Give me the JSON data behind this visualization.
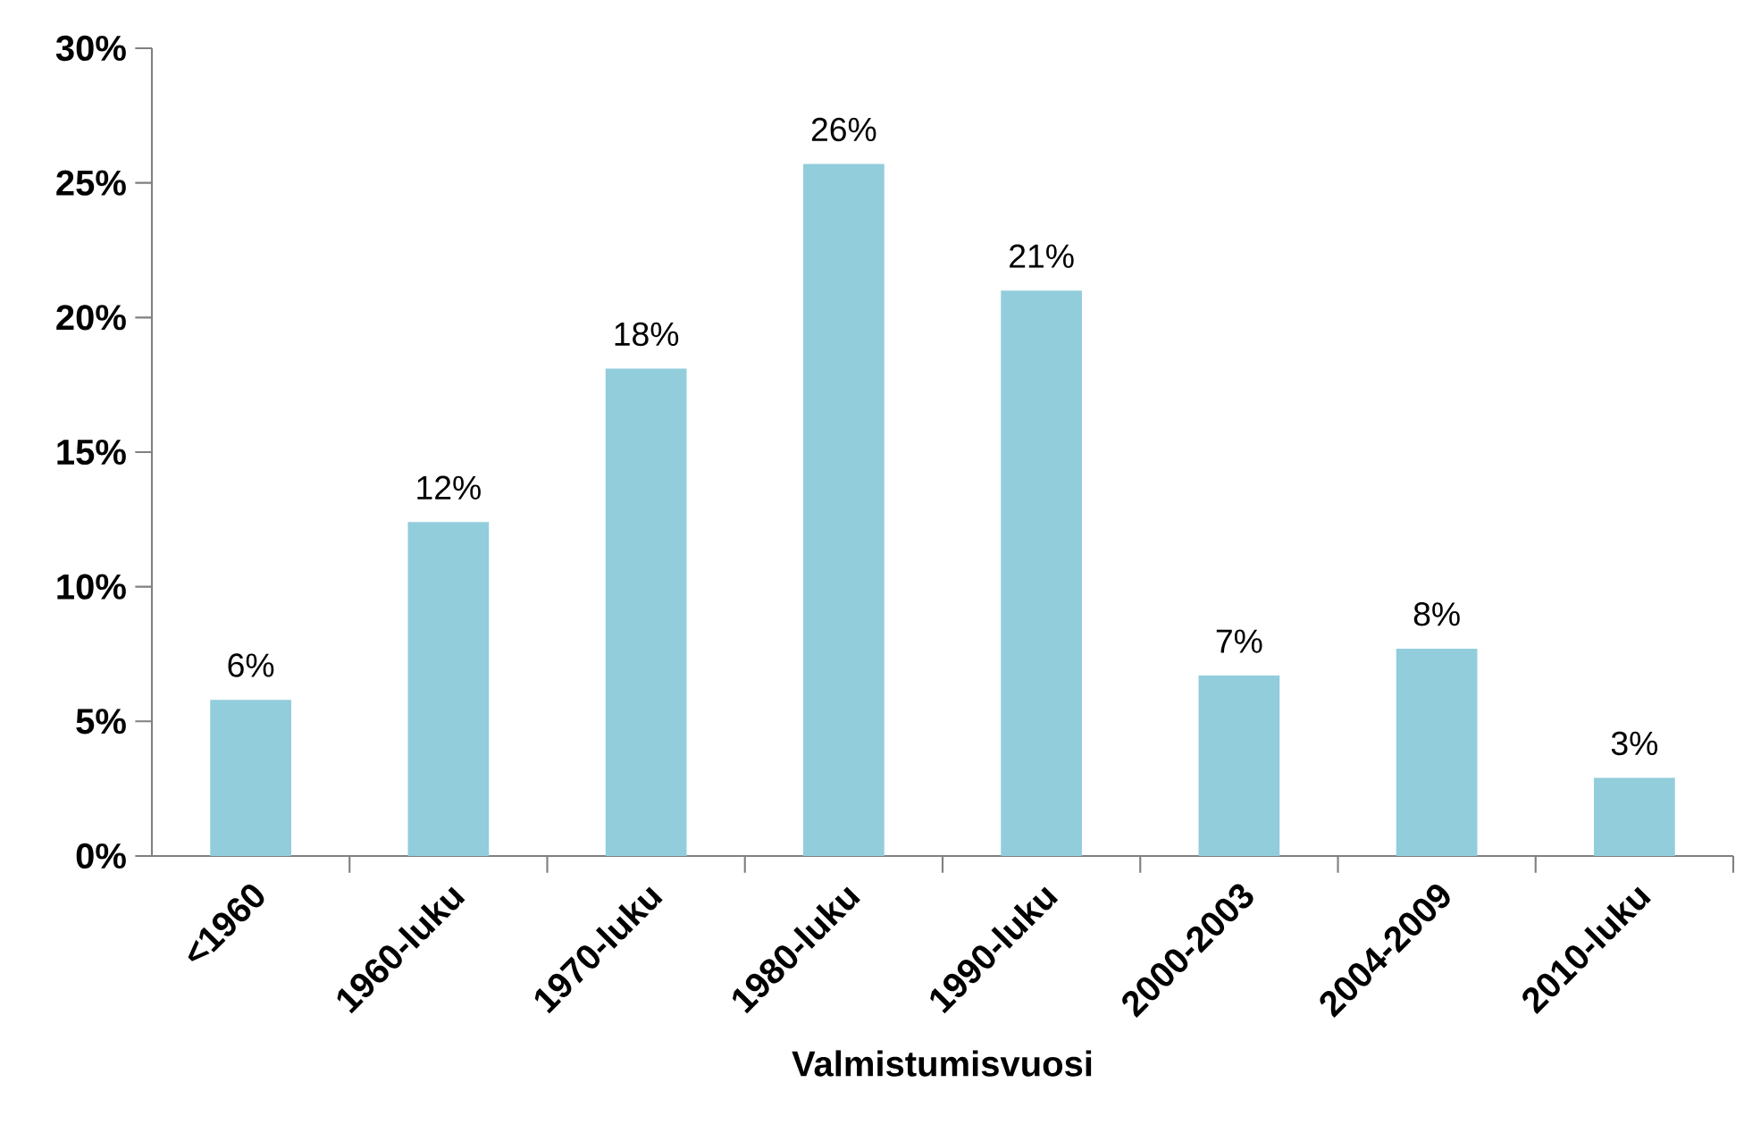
{
  "chart_data": {
    "type": "bar",
    "xlabel": "Valmistumisvuosi",
    "categories": [
      "<1960",
      "1960-luku",
      "1970-luku",
      "1980-luku",
      "1990-luku",
      "2000-2003",
      "2004-2009",
      "2010-luku"
    ],
    "values": [
      5.8,
      12.4,
      18.1,
      25.7,
      21.0,
      6.7,
      7.7,
      2.9
    ],
    "value_labels": [
      "6%",
      "12%",
      "18%",
      "26%",
      "21%",
      "7%",
      "8%",
      "3%"
    ],
    "color": "#92cddc",
    "ylim": [
      0,
      30
    ],
    "yticks": [
      {
        "value": 0,
        "label": "0%"
      },
      {
        "value": 5,
        "label": "5%"
      },
      {
        "value": 10,
        "label": "10%"
      },
      {
        "value": 15,
        "label": "15%"
      },
      {
        "value": 20,
        "label": "20%"
      },
      {
        "value": 25,
        "label": "25%"
      },
      {
        "value": 30,
        "label": "30%"
      }
    ],
    "grid": false
  }
}
